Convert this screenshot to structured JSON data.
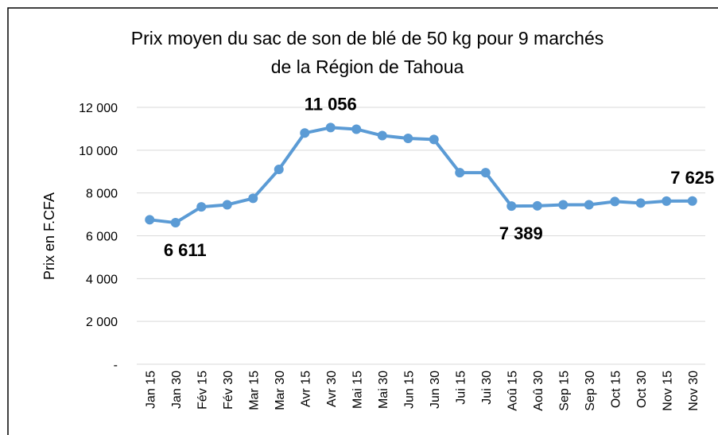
{
  "chart_data": {
    "type": "line",
    "title": [
      "Prix moyen du sac de son de blé de 50 kg pour 9 marchés",
      "de la Région de Tahoua"
    ],
    "y_label": "Prix en F.CFA",
    "categories": [
      "Jan 15",
      "Jan 30",
      "Fév 15",
      "Fév 30",
      "Mar 15",
      "Mar 30",
      "Avr 15",
      "Avr 30",
      "Mai 15",
      "Mai 30",
      "Jun 15",
      "Jun 30",
      "Jui 15",
      "Jui 30",
      "Aoû 15",
      "Aoû 30",
      "Sep 15",
      "Sep 30",
      "Oct 15",
      "Oct 30",
      "Nov 15",
      "Nov 30"
    ],
    "values": [
      6750,
      6611,
      7350,
      7450,
      7750,
      9100,
      10800,
      11056,
      10980,
      10680,
      10550,
      10500,
      8950,
      8950,
      7389,
      7400,
      7450,
      7450,
      7600,
      7530,
      7620,
      7625
    ],
    "value_labels": [
      null,
      "6 611",
      null,
      null,
      null,
      null,
      null,
      "11 056",
      null,
      null,
      null,
      null,
      null,
      null,
      "7 389",
      null,
      null,
      null,
      null,
      null,
      null,
      "7 625"
    ],
    "color": "#5b9bd5",
    "ylim": [
      0,
      12000
    ],
    "yticks": [
      {
        "value": 0,
        "label": "-"
      },
      {
        "value": 2000,
        "label": "2 000"
      },
      {
        "value": 4000,
        "label": "4 000"
      },
      {
        "value": 6000,
        "label": "6 000"
      },
      {
        "value": 8000,
        "label": "8 000"
      },
      {
        "value": 10000,
        "label": "10 000"
      },
      {
        "value": 12000,
        "label": "12 000"
      }
    ],
    "grid": true
  }
}
